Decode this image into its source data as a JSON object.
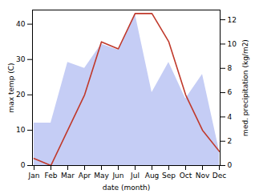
{
  "chart_data": {
    "type": "line",
    "categories": [
      "Jan",
      "Feb",
      "Mar",
      "Apr",
      "May",
      "Jun",
      "Jul",
      "Aug",
      "Sep",
      "Oct",
      "Nov",
      "Dec"
    ],
    "xlabel": "date (month)",
    "ylabel": "max temp (C)",
    "y2label": "med. precipitation (kg/m2)",
    "ylim": [
      0,
      44
    ],
    "yticks": [
      0,
      10,
      20,
      30,
      40
    ],
    "y2lim": [
      0,
      12.8
    ],
    "y2ticks": [
      0,
      2,
      4,
      6,
      8,
      10,
      12
    ],
    "series": [
      {
        "type": "area",
        "axis": "y2",
        "color": "#c5cdf5",
        "values": [
          3.5,
          3.5,
          8.5,
          8.0,
          10.0,
          9.5,
          12.5,
          6.0,
          8.5,
          5.5,
          7.5,
          1.2
        ]
      },
      {
        "type": "line",
        "color": "#c0392b",
        "values": [
          2,
          0,
          10,
          20,
          35,
          33,
          43,
          43,
          35,
          20,
          10,
          4
        ]
      }
    ]
  }
}
